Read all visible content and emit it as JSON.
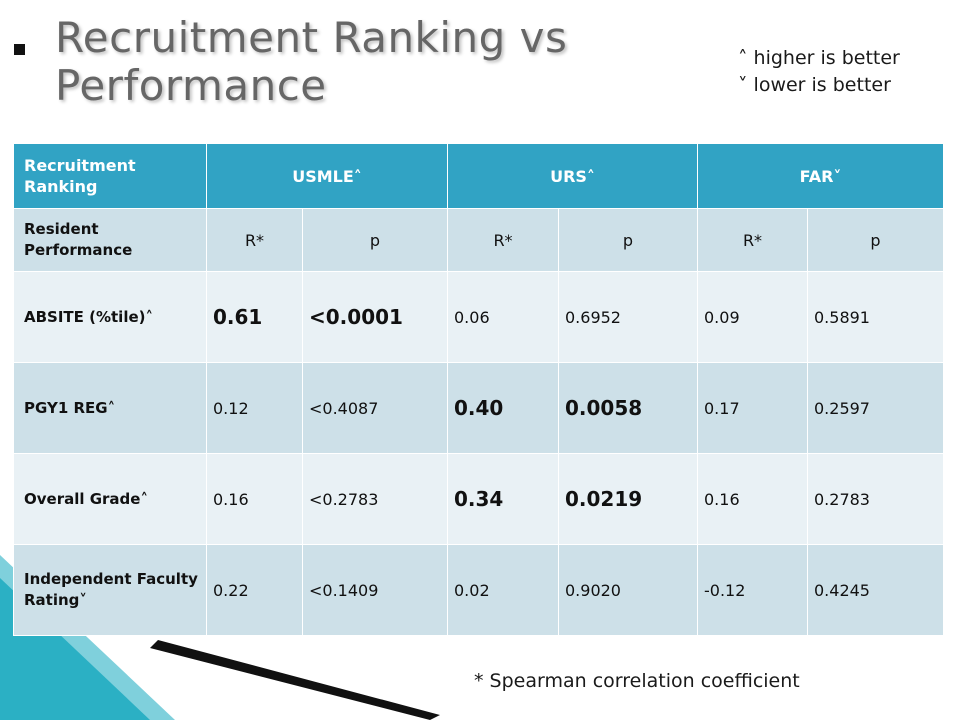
{
  "slide": {
    "title": "Recruitment Ranking vs Performance",
    "legend": [
      "˄ higher is better",
      "˅ lower is better"
    ],
    "footnote": "* Spearman correlation coefficient"
  },
  "table": {
    "header": [
      "Recruitment Ranking",
      "USMLE˄",
      "URS˄",
      "FAR˅"
    ],
    "subheader": [
      "Resident Performance",
      "R*",
      "p",
      "R*",
      "p",
      "R*",
      "p"
    ],
    "rows": [
      {
        "label": "ABSITE (%tile)˄",
        "cells": [
          "0.61",
          "<0.0001",
          "0.06",
          "0.6952",
          "0.09",
          "0.5891"
        ]
      },
      {
        "label": "PGY1  REG˄",
        "cells": [
          "0.12",
          "<0.4087",
          "0.40",
          "0.0058",
          "0.17",
          "0.2597"
        ]
      },
      {
        "label": "Overall  Grade˄",
        "cells": [
          "0.16",
          "<0.2783",
          "0.34",
          "0.0219",
          "0.16",
          "0.2783"
        ]
      },
      {
        "label": "Independent Faculty Rating˅",
        "cells": [
          "0.22",
          "<0.1409",
          "0.02",
          "0.9020",
          "-0.12",
          "0.4245"
        ]
      }
    ]
  },
  "colors": {
    "header_bg": "#31a3c4",
    "row_dark": "#cde0e8",
    "row_light": "#e9f1f5",
    "accent_teal": "#2bb0c4"
  }
}
